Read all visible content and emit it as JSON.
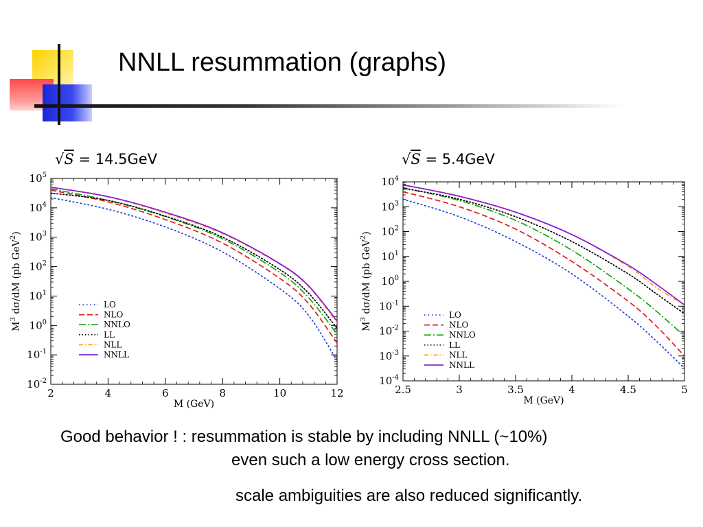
{
  "slide": {
    "title": "NNLL resummation (graphs)",
    "notes": [
      "Good behavior !  :  resummation is stable by including NNLL (~10%)",
      "even such a low energy cross section.",
      "scale ambiguities are also reduced significantly."
    ],
    "rs_prefix": "S",
    "rs_left": "= 14.5GeV",
    "rs_right": "= 5.4GeV"
  },
  "colors": {
    "LO": "#1f3fd6",
    "NLO": "#e01b1b",
    "NNLO": "#13a313",
    "LL": "#000000",
    "NLL": "#ff9f1a",
    "NNLL": "#8b1fd6"
  },
  "chart_data": [
    {
      "type": "line",
      "title": "√S = 14.5GeV",
      "xlabel": "M (GeV)",
      "ylabel": "M3 dσ/dM (pb GeV2)",
      "xlim": [
        2,
        12
      ],
      "ylim_log10": [
        -2,
        5
      ],
      "yscale": "log",
      "xticks": [
        "2",
        "4",
        "6",
        "8",
        "10",
        "12"
      ],
      "yticks": [
        "10-2",
        "10-1",
        "100",
        "101",
        "102",
        "103",
        "104",
        "105"
      ],
      "legend_position": "center-left",
      "x": [
        2,
        4,
        6,
        8,
        10,
        11,
        12
      ],
      "series": [
        {
          "name": "LO",
          "style": "dotted",
          "log10": [
            4.35,
            3.95,
            3.35,
            2.5,
            1.25,
            0.35,
            -1.2
          ]
        },
        {
          "name": "NLO",
          "style": "dashed",
          "log10": [
            4.6,
            4.2,
            3.6,
            2.8,
            1.6,
            0.75,
            -0.6
          ]
        },
        {
          "name": "NNLO",
          "style": "dashdot",
          "log10": [
            4.65,
            4.25,
            3.7,
            2.95,
            1.8,
            0.95,
            -0.3
          ]
        },
        {
          "name": "LL",
          "style": "dotted2",
          "log10": [
            4.5,
            4.25,
            3.72,
            3.0,
            1.9,
            1.1,
            -0.1
          ]
        },
        {
          "name": "NLL",
          "style": "dashdot2",
          "log10": [
            4.7,
            4.38,
            3.82,
            3.12,
            2.08,
            1.32,
            0.1
          ]
        },
        {
          "name": "NNLL",
          "style": "solid",
          "log10": [
            4.7,
            4.38,
            3.85,
            3.15,
            2.1,
            1.35,
            0.15
          ]
        }
      ]
    },
    {
      "type": "line",
      "title": "√S = 5.4GeV",
      "xlabel": "M (GeV)",
      "ylabel": "M3 dσ/dM (pb GeV2)",
      "xlim": [
        2.5,
        5
      ],
      "ylim_log10": [
        -4,
        4
      ],
      "yscale": "log",
      "xticks": [
        "2.5",
        "3",
        "3.5",
        "4",
        "4.5",
        "5"
      ],
      "yticks": [
        "10-4",
        "10-3",
        "10-2",
        "10-1",
        "100",
        "101",
        "102",
        "103",
        "104"
      ],
      "legend_position": "bottom-left",
      "x": [
        2.5,
        3,
        3.5,
        4,
        4.5,
        4.75,
        5
      ],
      "series": [
        {
          "name": "LO",
          "style": "dotted",
          "log10": [
            3.3,
            2.6,
            1.6,
            0.3,
            -1.4,
            -2.4,
            -3.5
          ]
        },
        {
          "name": "NLO",
          "style": "dashed",
          "log10": [
            3.6,
            3.0,
            2.1,
            0.8,
            -0.8,
            -1.8,
            -3.0
          ]
        },
        {
          "name": "NNLO",
          "style": "dashdot",
          "log10": [
            3.75,
            3.25,
            2.45,
            1.25,
            -0.3,
            -1.2,
            -2.2
          ]
        },
        {
          "name": "LL",
          "style": "dotted2",
          "log10": [
            3.75,
            3.3,
            2.6,
            1.6,
            0.3,
            -0.5,
            -1.3
          ]
        },
        {
          "name": "NLL",
          "style": "dashdot2",
          "log10": [
            3.88,
            3.42,
            2.78,
            1.88,
            0.6,
            -0.25,
            -0.95
          ]
        },
        {
          "name": "NNLL",
          "style": "solid",
          "log10": [
            3.88,
            3.42,
            2.78,
            1.88,
            0.65,
            -0.12,
            -0.95
          ]
        }
      ]
    }
  ]
}
